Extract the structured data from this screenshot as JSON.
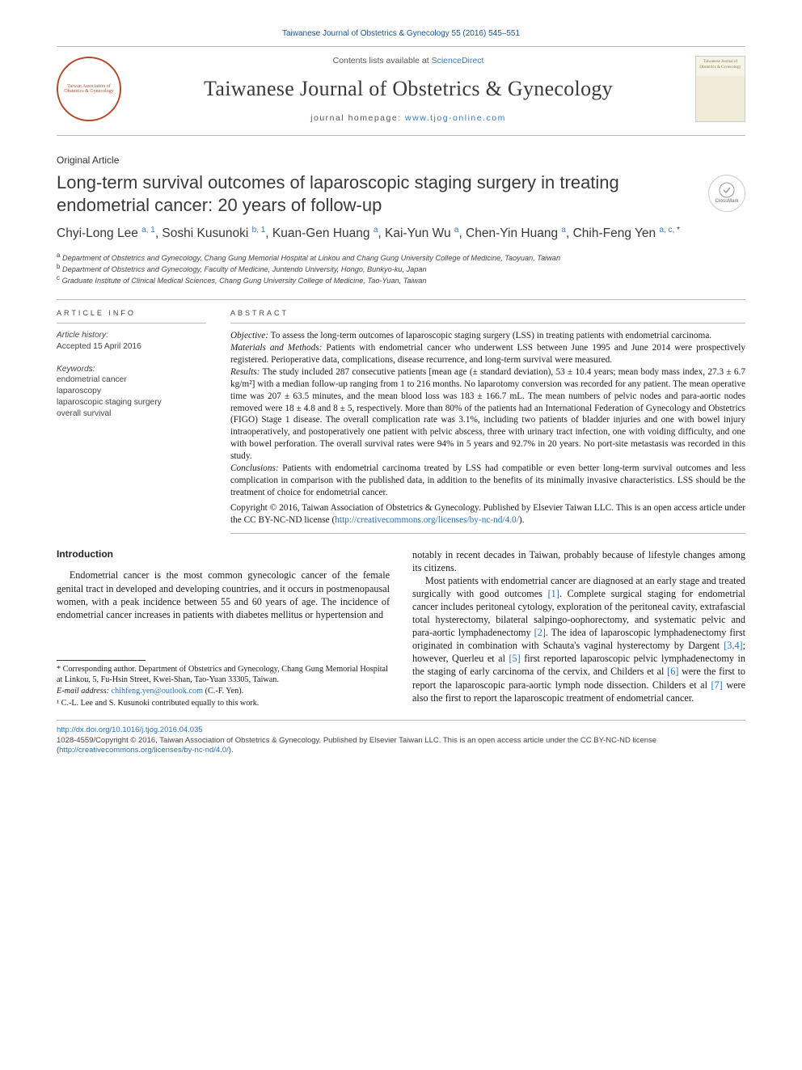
{
  "citation": "Taiwanese Journal of Obstetrics & Gynecology 55 (2016) 545–551",
  "masthead": {
    "contents_prefix": "Contents lists available at ",
    "contents_link": "ScienceDirect",
    "journal_name": "Taiwanese Journal of Obstetrics & Gynecology",
    "homepage_prefix": "journal homepage: ",
    "homepage_url": "www.tjog-online.com",
    "logo_text": "Taiwan Association of Obstetrics & Gynecology",
    "cover_text": "Taiwanese Journal of Obstetrics & Gynecology"
  },
  "article_type": "Original Article",
  "crossmark_label": "CrossMark",
  "title": "Long-term survival outcomes of laparoscopic staging surgery in treating endometrial cancer: 20 years of follow-up",
  "authors_html": "Chyi-Long Lee <span class='sup'>a, 1</span>, Soshi Kusunoki <span class='sup'>b, 1</span>, Kuan-Gen Huang <span class='sup'>a</span>, Kai-Yun Wu <span class='sup'>a</span>, Chen-Yin Huang <span class='sup'>a</span>, Chih-Feng Yen <span class='sup'>a, c, </span><span class='sup-black'>*</span>",
  "affiliations": {
    "a": "Department of Obstetrics and Gynecology, Chang Gung Memorial Hospital at Linkou and Chang Gung University College of Medicine, Taoyuan, Taiwan",
    "b": "Department of Obstetrics and Gynecology, Faculty of Medicine, Juntendo University, Hongo, Bunkyo-ku, Japan",
    "c": "Graduate Institute of Clinical Medical Sciences, Chang Gung University College of Medicine, Tao-Yuan, Taiwan"
  },
  "article_info": {
    "heading": "ARTICLE INFO",
    "history_label": "Article history:",
    "accepted": "Accepted 15 April 2016",
    "keywords_label": "Keywords:",
    "keywords": [
      "endometrial cancer",
      "laparoscopy",
      "laparoscopic staging surgery",
      "overall survival"
    ]
  },
  "abstract": {
    "heading": "ABSTRACT",
    "objective_label": "Objective:",
    "objective": "To assess the long-term outcomes of laparoscopic staging surgery (LSS) in treating patients with endometrial carcinoma.",
    "methods_label": "Materials and Methods:",
    "methods": "Patients with endometrial cancer who underwent LSS between June 1995 and June 2014 were prospectively registered. Perioperative data, complications, disease recurrence, and long-term survival were measured.",
    "results_label": "Results:",
    "results": "The study included 287 consecutive patients [mean age (± standard deviation), 53 ± 10.4 years; mean body mass index, 27.3 ± 6.7 kg/m²] with a median follow-up ranging from 1 to 216 months. No laparotomy conversion was recorded for any patient. The mean operative time was 207 ± 63.5 minutes, and the mean blood loss was 183 ± 166.7 mL. The mean numbers of pelvic nodes and para-aortic nodes removed were 18 ± 4.8 and 8 ± 5, respectively. More than 80% of the patients had an International Federation of Gynecology and Obstetrics (FIGO) Stage 1 disease. The overall complication rate was 3.1%, including two patients of bladder injuries and one with bowel injury intraoperatively, and postoperatively one patient with pelvic abscess, three with urinary tract infection, one with voiding difficulty, and one with bowel perforation. The overall survival rates were 94% in 5 years and 92.7% in 20 years. No port-site metastasis was recorded in this study.",
    "conclusions_label": "Conclusions:",
    "conclusions": "Patients with endometrial carcinoma treated by LSS had compatible or even better long-term survival outcomes and less complication in comparison with the published data, in addition to the benefits of its minimally invasive characteristics. LSS should be the treatment of choice for endometrial cancer.",
    "copyright": "Copyright © 2016, Taiwan Association of Obstetrics & Gynecology. Published by Elsevier Taiwan LLC. This is an open access article under the CC BY-NC-ND license (",
    "cc_url": "http://creativecommons.org/licenses/by-nc-nd/4.0/",
    "copyright_tail": ")."
  },
  "intro": {
    "heading": "Introduction",
    "p1": "Endometrial cancer is the most common gynecologic cancer of the female genital tract in developed and developing countries, and it occurs in postmenopausal women, with a peak incidence between 55 and 60 years of age. The incidence of endometrial cancer increases in patients with diabetes mellitus or hypertension and",
    "p2": "notably in recent decades in Taiwan, probably because of lifestyle changes among its citizens.",
    "p3_a": "Most patients with endometrial cancer are diagnosed at an early stage and treated surgically with good outcomes ",
    "p3_b": ". Complete surgical staging for endometrial cancer includes peritoneal cytology, exploration of the peritoneal cavity, extrafascial total hysterectomy, bilateral salpingo-oophorectomy, and systematic pelvic and para-aortic lymphadenectomy ",
    "p3_c": ". The idea of laparoscopic lymphadenectomy first originated in combination with Schauta's vaginal hysterectomy by Dargent ",
    "p3_d": "; however, Querleu et al ",
    "p3_e": " first reported laparoscopic pelvic lymphadenectomy in the staging of early carcinoma of the cervix, and Childers et al ",
    "p3_f": " were the first to report the laparoscopic para-aortic lymph node dissection. Childers et al ",
    "p3_g": " were also the first to report the laparoscopic treatment of endometrial cancer.",
    "ref1": "[1]",
    "ref2": "[2]",
    "ref34": "[3,4]",
    "ref5": "[5]",
    "ref6": "[6]",
    "ref7": "[7]"
  },
  "footnotes": {
    "corr": "* Corresponding author. Department of Obstetrics and Gynecology, Chang Gung Memorial Hospital at Linkou, 5, Fu-Hsin Street, Kwei-Shan, Tao-Yuan 33305, Taiwan.",
    "email_label": "E-mail address:",
    "email": "chihfeng.yen@outlook.com",
    "email_tail": " (C.-F. Yen).",
    "equal": "¹ C.-L. Lee and S. Kusunoki contributed equally to this work."
  },
  "footer": {
    "doi": "http://dx.doi.org/10.1016/j.tjog.2016.04.035",
    "line": "1028-4559/Copyright © 2016, Taiwan Association of Obstetrics & Gynecology. Published by Elsevier Taiwan LLC. This is an open access article under the CC BY-NC-ND license (",
    "url": "http://creativecommons.org/licenses/by-nc-nd/4.0/",
    "tail": ")."
  },
  "colors": {
    "link": "#2a70b8",
    "logo": "#b24a2a",
    "rule": "#bbbbbb",
    "text": "#1a1a1a"
  }
}
